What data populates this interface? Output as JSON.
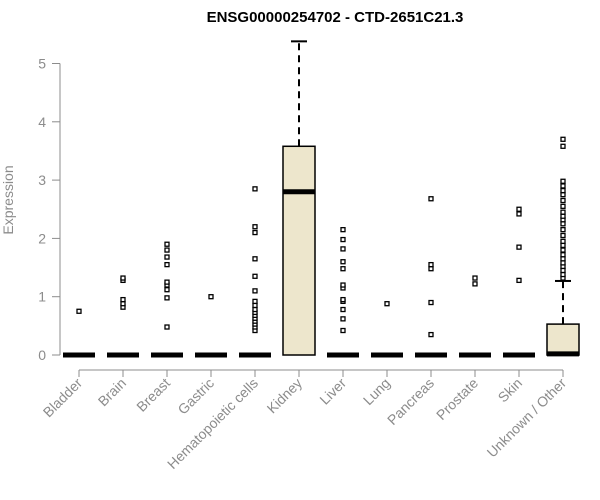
{
  "chart_data": {
    "type": "box",
    "title": "ENSG00000254702 - CTD-2651C21.3",
    "xlabel": "",
    "ylabel": "Expression",
    "ylim": [
      0,
      5.5
    ],
    "yticks": [
      0,
      1,
      2,
      3,
      4,
      5
    ],
    "box_fill": "#ede6cc",
    "categories": [
      "Bladder",
      "Brain",
      "Breast",
      "Gastric",
      "Hematopoietic cells",
      "Kidney",
      "Liver",
      "Lung",
      "Pancreas",
      "Prostate",
      "Skin",
      "Unknown / Other"
    ],
    "boxes": [
      {
        "q1": 0,
        "median": 0,
        "q3": 0,
        "whisker_low": 0,
        "whisker_high": 0,
        "outliers": [
          0.75
        ]
      },
      {
        "q1": 0,
        "median": 0,
        "q3": 0,
        "whisker_low": 0,
        "whisker_high": 0,
        "outliers": [
          0.82,
          0.88,
          0.95,
          1.28,
          1.32
        ]
      },
      {
        "q1": 0,
        "median": 0,
        "q3": 0,
        "whisker_low": 0,
        "whisker_high": 0,
        "outliers": [
          0.48,
          0.98,
          1.12,
          1.2,
          1.25,
          1.55,
          1.68,
          1.8,
          1.9
        ]
      },
      {
        "q1": 0,
        "median": 0,
        "q3": 0,
        "whisker_low": 0,
        "whisker_high": 0,
        "outliers": [
          1.0
        ]
      },
      {
        "q1": 0,
        "median": 0,
        "q3": 0,
        "whisker_low": 0,
        "whisker_high": 0,
        "outliers": [
          0.42,
          0.48,
          0.53,
          0.58,
          0.63,
          0.68,
          0.73,
          0.78,
          0.85,
          0.92,
          1.1,
          1.35,
          1.65,
          2.1,
          2.2,
          2.85
        ]
      },
      {
        "q1": 0,
        "median": 2.8,
        "q3": 3.58,
        "whisker_low": 0,
        "whisker_high": 5.38,
        "outliers": []
      },
      {
        "q1": 0,
        "median": 0,
        "q3": 0,
        "whisker_low": 0,
        "whisker_high": 0,
        "outliers": [
          0.42,
          0.62,
          0.78,
          0.92,
          0.95,
          1.15,
          1.2,
          1.48,
          1.6,
          1.82,
          1.98,
          2.15
        ]
      },
      {
        "q1": 0,
        "median": 0,
        "q3": 0,
        "whisker_low": 0,
        "whisker_high": 0,
        "outliers": [
          0.88
        ]
      },
      {
        "q1": 0,
        "median": 0,
        "q3": 0,
        "whisker_low": 0,
        "whisker_high": 0,
        "outliers": [
          0.35,
          0.9,
          1.48,
          1.55,
          2.68
        ]
      },
      {
        "q1": 0,
        "median": 0,
        "q3": 0,
        "whisker_low": 0,
        "whisker_high": 0,
        "outliers": [
          1.22,
          1.32
        ]
      },
      {
        "q1": 0,
        "median": 0,
        "q3": 0,
        "whisker_low": 0,
        "whisker_high": 0,
        "outliers": [
          1.28,
          1.85,
          2.42,
          2.5
        ]
      },
      {
        "q1": 0,
        "median": 0.02,
        "q3": 0.53,
        "whisker_low": 0,
        "whisker_high": 1.27,
        "outliers": [
          1.32,
          1.38,
          1.45,
          1.52,
          1.58,
          1.65,
          1.72,
          1.8,
          1.88,
          1.95,
          2.05,
          2.15,
          2.25,
          2.32,
          2.38,
          2.45,
          2.55,
          2.65,
          2.75,
          2.82,
          2.9,
          2.98,
          3.58,
          3.7
        ]
      }
    ]
  }
}
